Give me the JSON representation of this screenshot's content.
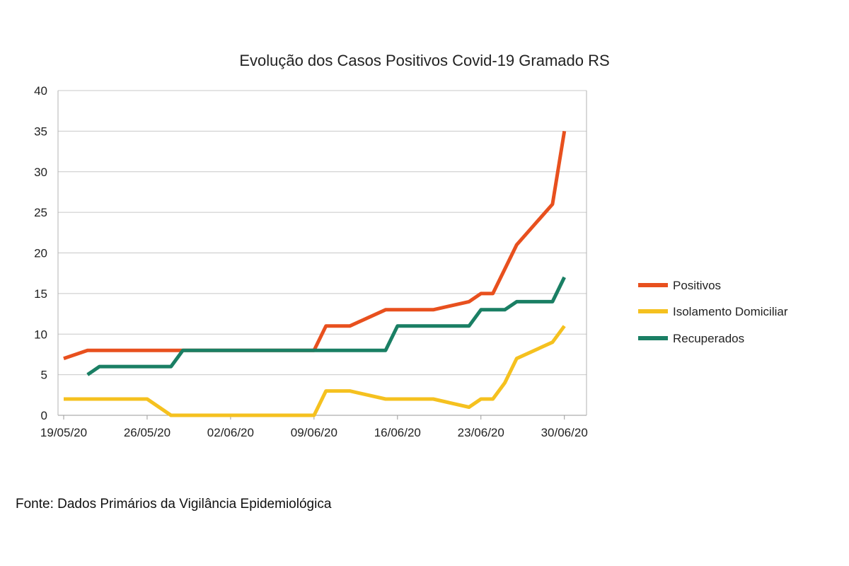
{
  "chart_data": {
    "type": "line",
    "title": "Evolução dos Casos Positivos Covid-19 Gramado RS",
    "xlabel": "",
    "ylabel": "",
    "x_start": "19/05/20",
    "x_tick_labels": [
      "19/05/20",
      "26/05/20",
      "02/06/20",
      "09/06/20",
      "16/06/20",
      "23/06/20",
      "30/06/20"
    ],
    "ylim": [
      0,
      40
    ],
    "y_ticks": [
      0,
      5,
      10,
      15,
      20,
      25,
      30,
      35,
      40
    ],
    "grid": "horizontal",
    "legend_position": "right",
    "series": [
      {
        "name": "Positivos",
        "color": "#E8501E",
        "points": [
          {
            "x": "19/05/20",
            "y": 7
          },
          {
            "x": "21/05/20",
            "y": 8
          },
          {
            "x": "22/05/20",
            "y": 8
          },
          {
            "x": "28/05/20",
            "y": 8
          },
          {
            "x": "29/05/20",
            "y": 8
          },
          {
            "x": "09/06/20",
            "y": 8
          },
          {
            "x": "10/06/20",
            "y": 11
          },
          {
            "x": "12/06/20",
            "y": 11
          },
          {
            "x": "15/06/20",
            "y": 13
          },
          {
            "x": "19/06/20",
            "y": 13
          },
          {
            "x": "22/06/20",
            "y": 14
          },
          {
            "x": "23/06/20",
            "y": 15
          },
          {
            "x": "24/06/20",
            "y": 15
          },
          {
            "x": "26/06/20",
            "y": 21
          },
          {
            "x": "29/06/20",
            "y": 26
          },
          {
            "x": "30/06/20",
            "y": 35
          }
        ]
      },
      {
        "name": "Isolamento Domiciliar",
        "color": "#F5C11F",
        "points": [
          {
            "x": "19/05/20",
            "y": 2
          },
          {
            "x": "26/05/20",
            "y": 2
          },
          {
            "x": "28/05/20",
            "y": 0
          },
          {
            "x": "09/06/20",
            "y": 0
          },
          {
            "x": "10/06/20",
            "y": 3
          },
          {
            "x": "12/06/20",
            "y": 3
          },
          {
            "x": "15/06/20",
            "y": 2
          },
          {
            "x": "19/06/20",
            "y": 2
          },
          {
            "x": "22/06/20",
            "y": 1
          },
          {
            "x": "23/06/20",
            "y": 2
          },
          {
            "x": "24/06/20",
            "y": 2
          },
          {
            "x": "25/06/20",
            "y": 4
          },
          {
            "x": "26/06/20",
            "y": 7
          },
          {
            "x": "29/06/20",
            "y": 9
          },
          {
            "x": "30/06/20",
            "y": 11
          }
        ]
      },
      {
        "name": "Recuperados",
        "color": "#1A7F64",
        "points": [
          {
            "x": "21/05/20",
            "y": 5
          },
          {
            "x": "22/05/20",
            "y": 6
          },
          {
            "x": "28/05/20",
            "y": 6
          },
          {
            "x": "29/05/20",
            "y": 8
          },
          {
            "x": "15/06/20",
            "y": 8
          },
          {
            "x": "16/06/20",
            "y": 11
          },
          {
            "x": "22/06/20",
            "y": 11
          },
          {
            "x": "23/06/20",
            "y": 13
          },
          {
            "x": "25/06/20",
            "y": 13
          },
          {
            "x": "26/06/20",
            "y": 14
          },
          {
            "x": "29/06/20",
            "y": 14
          },
          {
            "x": "30/06/20",
            "y": 17
          }
        ]
      }
    ]
  },
  "source_note": "Fonte: Dados Primários da Vigilância Epidemiológica"
}
